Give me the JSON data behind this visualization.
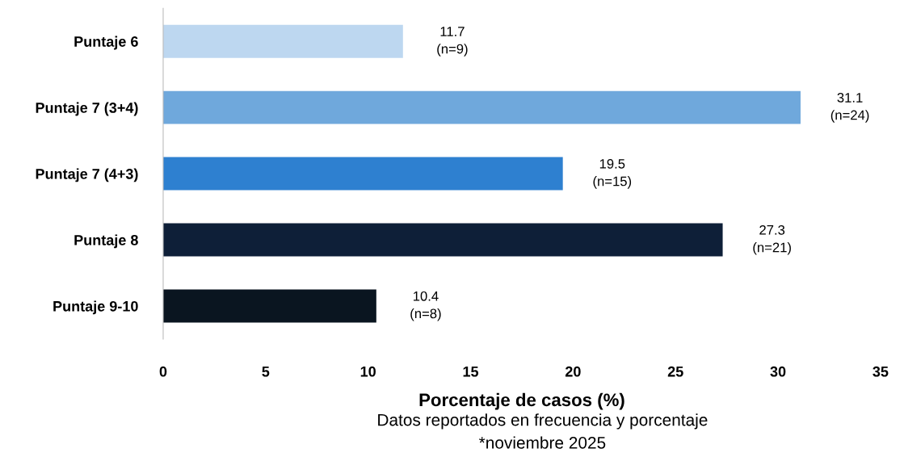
{
  "chart_data": {
    "type": "bar",
    "orientation": "horizontal",
    "categories": [
      "Puntaje 6",
      "Puntaje 7 (3+4)",
      "Puntaje 7 (4+3)",
      "Puntaje 8",
      "Puntaje 9-10"
    ],
    "values": [
      11.7,
      31.1,
      19.5,
      27.3,
      10.4
    ],
    "colors": [
      "#bdd7f0",
      "#6fa8dc",
      "#2e80d0",
      "#0e1f38",
      "#0a1520"
    ],
    "value_labels": [
      "11.7\n(n=9)",
      "31.1\n(n=24)",
      "19.5\n(n=15)",
      "27.3\n(n=21)",
      "10.4\n(n=8)"
    ],
    "xlim": [
      0,
      35
    ],
    "xticks": [
      0,
      5,
      10,
      15,
      20,
      25,
      30,
      35
    ],
    "xlabel": "Porcentaje de casos (%)",
    "annotations": [
      "Datos reportados en frecuencia y porcentaje",
      "*noviembre 2025"
    ],
    "grid": false,
    "legend": false
  }
}
